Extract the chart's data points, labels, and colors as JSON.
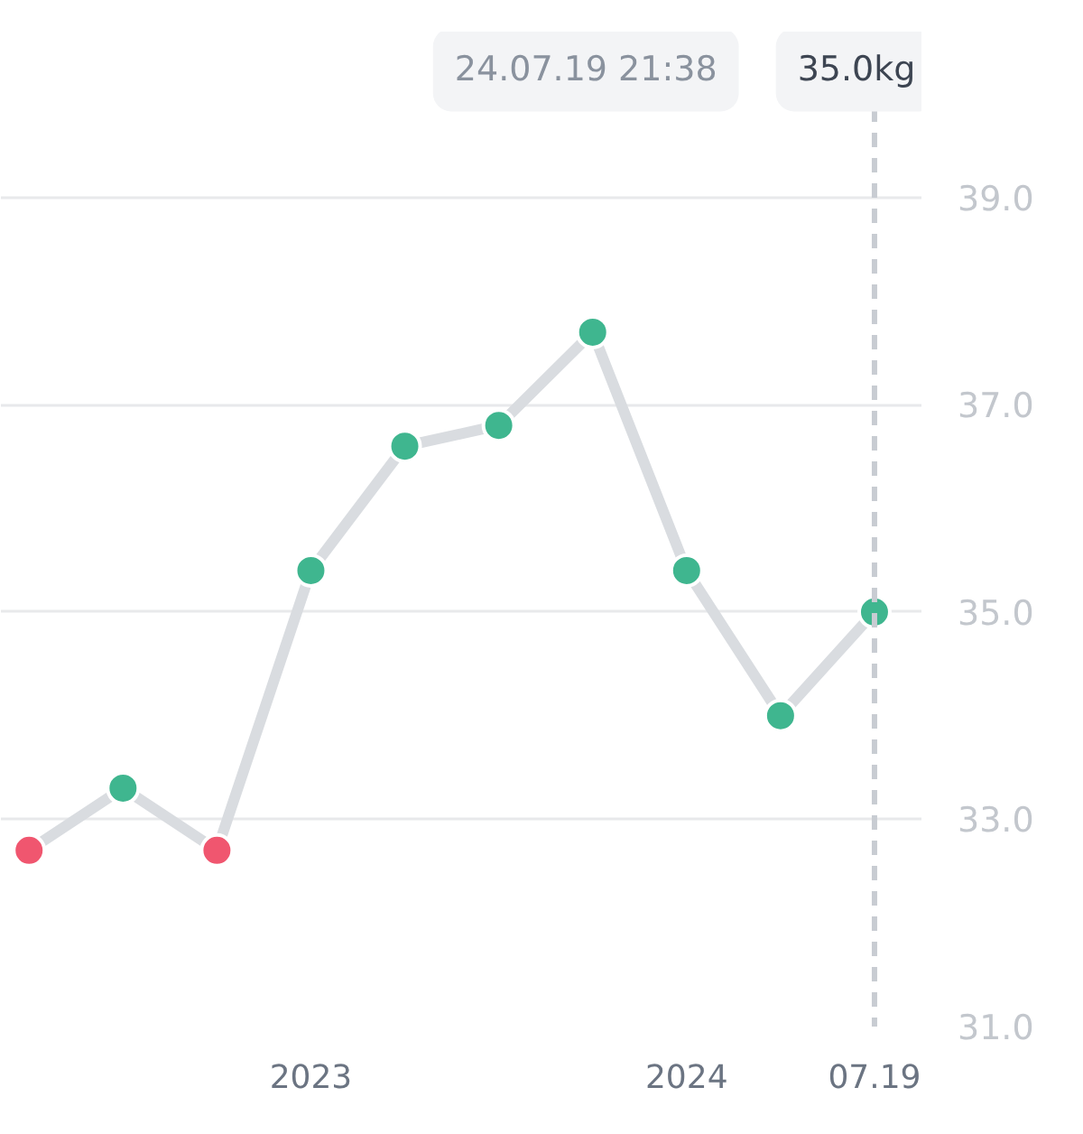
{
  "chart_data": {
    "type": "line",
    "categories": [
      null,
      null,
      null,
      "2023",
      null,
      null,
      null,
      "2024",
      null,
      "07.19"
    ],
    "series": [
      {
        "color": "#d9dce0",
        "colors": [
          "#f0566f",
          "#3fb68f",
          "#f0566f",
          "#3fb68f",
          "#3fb68f",
          "#3fb68f",
          "#3fb68f",
          "#3fb68f",
          "#3fb68f",
          "#3fb68f"
        ],
        "values": [
          32.7,
          33.3,
          32.7,
          35.4,
          36.6,
          36.8,
          37.7,
          35.4,
          34.0,
          35.0
        ]
      }
    ],
    "ylim": [
      31,
      40.6
    ],
    "yticks": [
      {
        "value": 31,
        "label": "31.0"
      },
      {
        "value": 33,
        "label": "33.0"
      },
      {
        "value": 35,
        "label": "35.0"
      },
      {
        "value": 37,
        "label": "37.0"
      },
      {
        "value": 39,
        "label": "39.0"
      }
    ],
    "grid": "y",
    "marker": "circle",
    "line_style": "solid",
    "ref_lines": [
      {
        "axis": "x",
        "value": "07.19",
        "label": null,
        "color": "#c8ccd2",
        "line_style": "dashed"
      }
    ],
    "annotations": [
      "24.07.19 21:38",
      "35.0kg"
    ]
  }
}
